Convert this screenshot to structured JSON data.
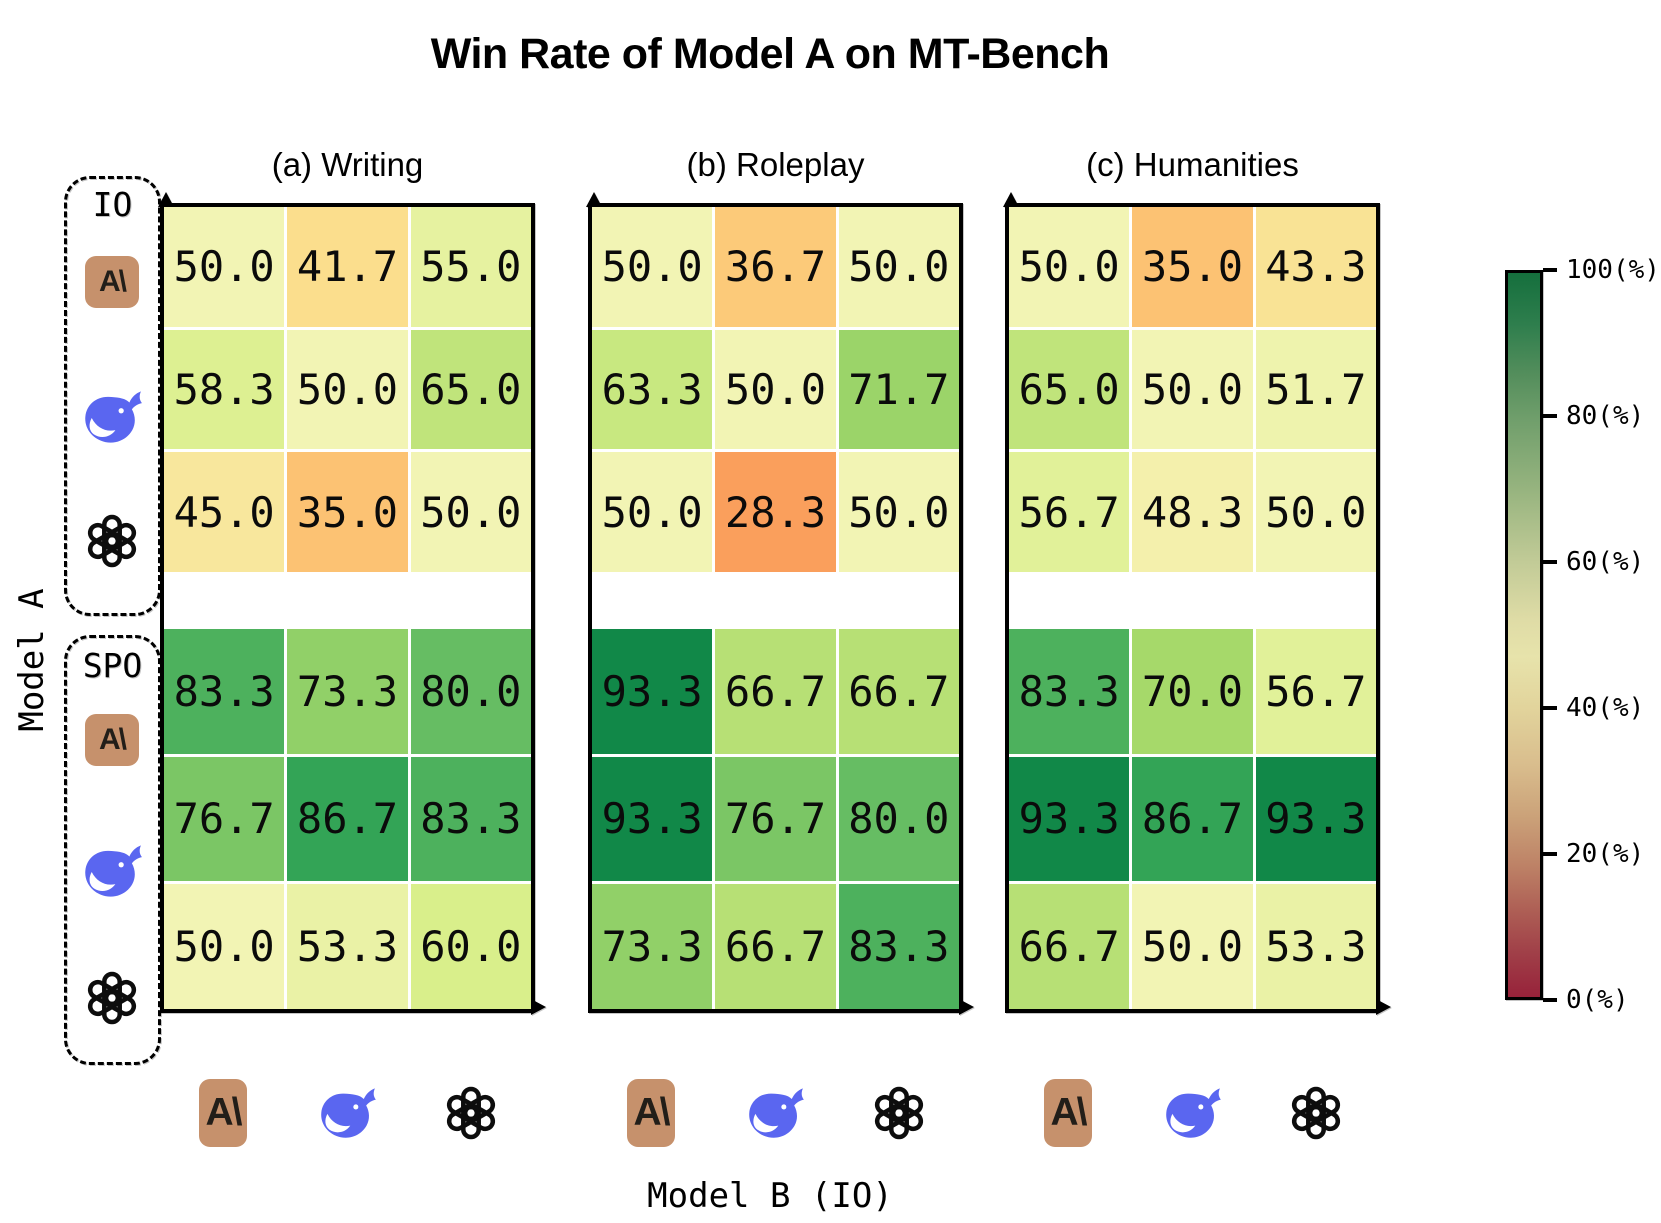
{
  "title": "Win Rate of Model A on MT-Bench",
  "y_axis": {
    "label": "Model A",
    "groups": [
      {
        "label": "IO"
      },
      {
        "label": "SPO"
      }
    ],
    "models": [
      {
        "name": "Anthropic",
        "icon": "anthropic-icon"
      },
      {
        "name": "DeepSeek",
        "icon": "deepseek-icon"
      },
      {
        "name": "OpenAI",
        "icon": "openai-icon"
      }
    ]
  },
  "x_axis": {
    "label": "Model B (IO)",
    "models": [
      {
        "name": "Anthropic",
        "icon": "anthropic-icon"
      },
      {
        "name": "DeepSeek",
        "icon": "deepseek-icon"
      },
      {
        "name": "OpenAI",
        "icon": "openai-icon"
      }
    ]
  },
  "colorbar": {
    "min": 0,
    "max": 100,
    "ticks": [
      "100(%)",
      "80(%)",
      "60(%)",
      "40(%)",
      "20(%)",
      "0(%)"
    ]
  },
  "icon_colors": {
    "anthropic_bg": "#C6916C",
    "anthropic_glyph": "A\\",
    "anthropic_glyph_color": "#221e19",
    "deepseek": "#5A66F0",
    "openai": "#0d0d0d"
  },
  "chart_data": [
    {
      "type": "heatmap",
      "title": "(a) Writing",
      "row_groups": [
        "IO",
        "SPO"
      ],
      "rows": [
        "Anthropic (IO)",
        "DeepSeek (IO)",
        "OpenAI (IO)",
        "Anthropic (SPO)",
        "DeepSeek (SPO)",
        "OpenAI (SPO)"
      ],
      "columns": [
        "Anthropic (IO)",
        "DeepSeek (IO)",
        "OpenAI (IO)"
      ],
      "values": [
        [
          50.0,
          41.7,
          55.0
        ],
        [
          58.3,
          50.0,
          65.0
        ],
        [
          45.0,
          35.0,
          50.0
        ],
        [
          83.3,
          73.3,
          80.0
        ],
        [
          76.7,
          86.7,
          83.3
        ],
        [
          50.0,
          53.3,
          60.0
        ]
      ],
      "vmin": 0,
      "vmax": 100,
      "colormap": "RdYlGn"
    },
    {
      "type": "heatmap",
      "title": "(b) Roleplay",
      "row_groups": [
        "IO",
        "SPO"
      ],
      "rows": [
        "Anthropic (IO)",
        "DeepSeek (IO)",
        "OpenAI (IO)",
        "Anthropic (SPO)",
        "DeepSeek (SPO)",
        "OpenAI (SPO)"
      ],
      "columns": [
        "Anthropic (IO)",
        "DeepSeek (IO)",
        "OpenAI (IO)"
      ],
      "values": [
        [
          50.0,
          36.7,
          50.0
        ],
        [
          63.3,
          50.0,
          71.7
        ],
        [
          50.0,
          28.3,
          50.0
        ],
        [
          93.3,
          66.7,
          66.7
        ],
        [
          93.3,
          76.7,
          80.0
        ],
        [
          73.3,
          66.7,
          83.3
        ]
      ],
      "vmin": 0,
      "vmax": 100,
      "colormap": "RdYlGn"
    },
    {
      "type": "heatmap",
      "title": "(c) Humanities",
      "row_groups": [
        "IO",
        "SPO"
      ],
      "rows": [
        "Anthropic (IO)",
        "DeepSeek (IO)",
        "OpenAI (IO)",
        "Anthropic (SPO)",
        "DeepSeek (SPO)",
        "OpenAI (SPO)"
      ],
      "columns": [
        "Anthropic (IO)",
        "DeepSeek (IO)",
        "OpenAI (IO)"
      ],
      "values": [
        [
          50.0,
          35.0,
          43.3
        ],
        [
          65.0,
          50.0,
          51.7
        ],
        [
          56.7,
          48.3,
          50.0
        ],
        [
          83.3,
          70.0,
          56.7
        ],
        [
          93.3,
          86.7,
          93.3
        ],
        [
          66.7,
          50.0,
          53.3
        ]
      ],
      "vmin": 0,
      "vmax": 100,
      "colormap": "RdYlGn"
    }
  ]
}
